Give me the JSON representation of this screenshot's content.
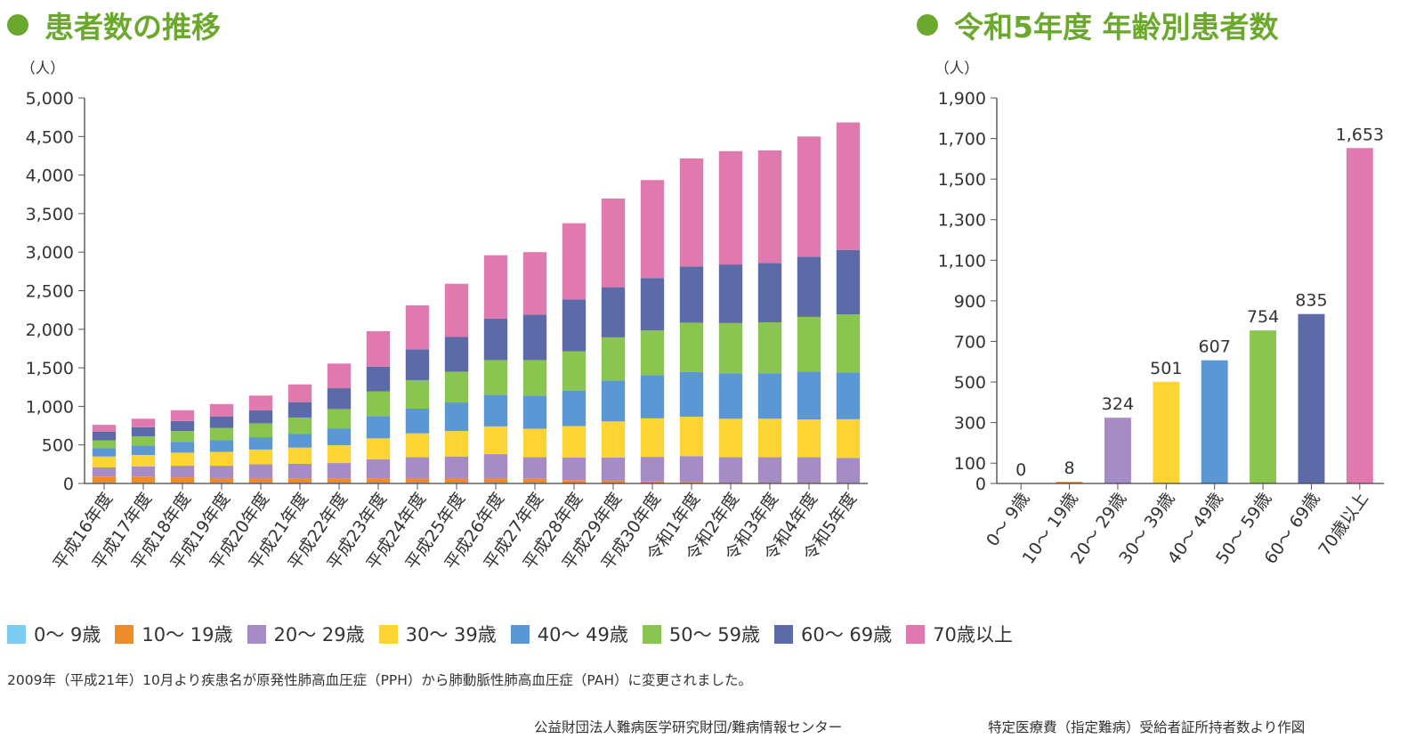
{
  "left_title": "患者数の推移",
  "right_title": "令和5年度 年齢別患者数",
  "legend": [
    {
      "label": "0～ 9歳",
      "color": "#7dcdf0"
    },
    {
      "label": "10～ 19歳",
      "color": "#f08c28"
    },
    {
      "label": "20～ 29歳",
      "color": "#a68cc4"
    },
    {
      "label": "30～ 39歳",
      "color": "#fcd535"
    },
    {
      "label": "40～ 49歳",
      "color": "#5b97d4"
    },
    {
      "label": "50～ 59歳",
      "color": "#8ac54f"
    },
    {
      "label": "60～ 69歳",
      "color": "#5c6aa8"
    },
    {
      "label": "70歳以上",
      "color": "#e07aae"
    }
  ],
  "note": "2009年（平成21年）10月より疾患名が原発性肺高血圧症（PPH）から肺動脈性肺高血圧症（PAH）に変更されました。",
  "source_left": "公益財団法人難病医学研究財団/難病情報センター",
  "source_right": "特定医療費（指定難病）受給者証所持者数より作図",
  "chart_data": [
    {
      "type": "bar",
      "stacked": true,
      "title": "患者数の推移",
      "ylabel": "（人）",
      "xlabel": "",
      "ylim": [
        0,
        5000
      ],
      "yticks": [
        0,
        500,
        1000,
        1500,
        2000,
        2500,
        3000,
        3500,
        4000,
        4500,
        5000
      ],
      "ytick_labels": [
        "0",
        "500",
        "1,000",
        "1,500",
        "2,000",
        "2,500",
        "3,000",
        "3,500",
        "4,000",
        "4,500",
        "5,000"
      ],
      "categories": [
        "平成16年度",
        "平成17年度",
        "平成18年度",
        "平成19年度",
        "平成20年度",
        "平成21年度",
        "平成22年度",
        "平成23年度",
        "平成24年度",
        "平成25年度",
        "平成26年度",
        "平成27年度",
        "平成28年度",
        "平成29年度",
        "平成30年度",
        "令和1年度",
        "令和2年度",
        "令和3年度",
        "令和4年度",
        "令和5年度"
      ],
      "series": [
        {
          "name": "0～ 9歳",
          "values": [
            10,
            10,
            10,
            10,
            10,
            10,
            10,
            10,
            10,
            10,
            10,
            10,
            5,
            5,
            5,
            5,
            0,
            0,
            0,
            0
          ]
        },
        {
          "name": "10～ 19歳",
          "values": [
            80,
            80,
            70,
            60,
            60,
            55,
            55,
            55,
            60,
            60,
            60,
            50,
            40,
            30,
            20,
            15,
            10,
            10,
            10,
            8
          ]
        },
        {
          "name": "20～ 29歳",
          "values": [
            120,
            130,
            150,
            160,
            180,
            190,
            200,
            250,
            270,
            280,
            310,
            280,
            290,
            300,
            320,
            335,
            330,
            330,
            330,
            324
          ]
        },
        {
          "name": "30～ 39歳",
          "values": [
            140,
            150,
            170,
            180,
            190,
            210,
            230,
            270,
            310,
            330,
            360,
            370,
            410,
            470,
            500,
            510,
            500,
            500,
            490,
            501
          ]
        },
        {
          "name": "40～ 49歳",
          "values": [
            110,
            120,
            140,
            150,
            160,
            180,
            220,
            290,
            320,
            370,
            410,
            430,
            460,
            530,
            560,
            580,
            590,
            590,
            620,
            607
          ]
        },
        {
          "name": "50～ 59歳",
          "values": [
            100,
            120,
            140,
            160,
            180,
            210,
            250,
            320,
            370,
            400,
            450,
            460,
            510,
            560,
            580,
            640,
            650,
            660,
            710,
            754
          ]
        },
        {
          "name": "60～ 69歳",
          "values": [
            110,
            120,
            130,
            150,
            170,
            200,
            270,
            320,
            400,
            450,
            540,
            590,
            670,
            650,
            680,
            730,
            760,
            770,
            780,
            835
          ]
        },
        {
          "name": "70歳以上",
          "values": [
            90,
            110,
            140,
            160,
            190,
            230,
            320,
            460,
            570,
            690,
            820,
            810,
            990,
            1150,
            1270,
            1400,
            1470,
            1460,
            1560,
            1653
          ]
        }
      ]
    },
    {
      "type": "bar",
      "stacked": false,
      "title": "令和5年度 年齢別患者数",
      "ylabel": "（人）",
      "xlabel": "",
      "ylim": [
        0,
        1900
      ],
      "yticks": [
        0,
        100,
        300,
        500,
        700,
        900,
        1100,
        1300,
        1500,
        1700,
        1900
      ],
      "ytick_labels": [
        "0",
        "100",
        "300",
        "500",
        "700",
        "900",
        "1,100",
        "1,300",
        "1,500",
        "1,700",
        "1,900"
      ],
      "categories": [
        "0～ 9歳",
        "10～ 19歳",
        "20～ 29歳",
        "30～ 39歳",
        "40～ 49歳",
        "50～ 59歳",
        "60～ 69歳",
        "70歳以上"
      ],
      "values": [
        0,
        8,
        324,
        501,
        607,
        754,
        835,
        1653
      ],
      "data_labels": [
        "0",
        "8",
        "324",
        "501",
        "607",
        "754",
        "835",
        "1,653"
      ],
      "colors": [
        "#7dcdf0",
        "#f08c28",
        "#a68cc4",
        "#fcd535",
        "#5b97d4",
        "#8ac54f",
        "#5c6aa8",
        "#e07aae"
      ]
    }
  ]
}
